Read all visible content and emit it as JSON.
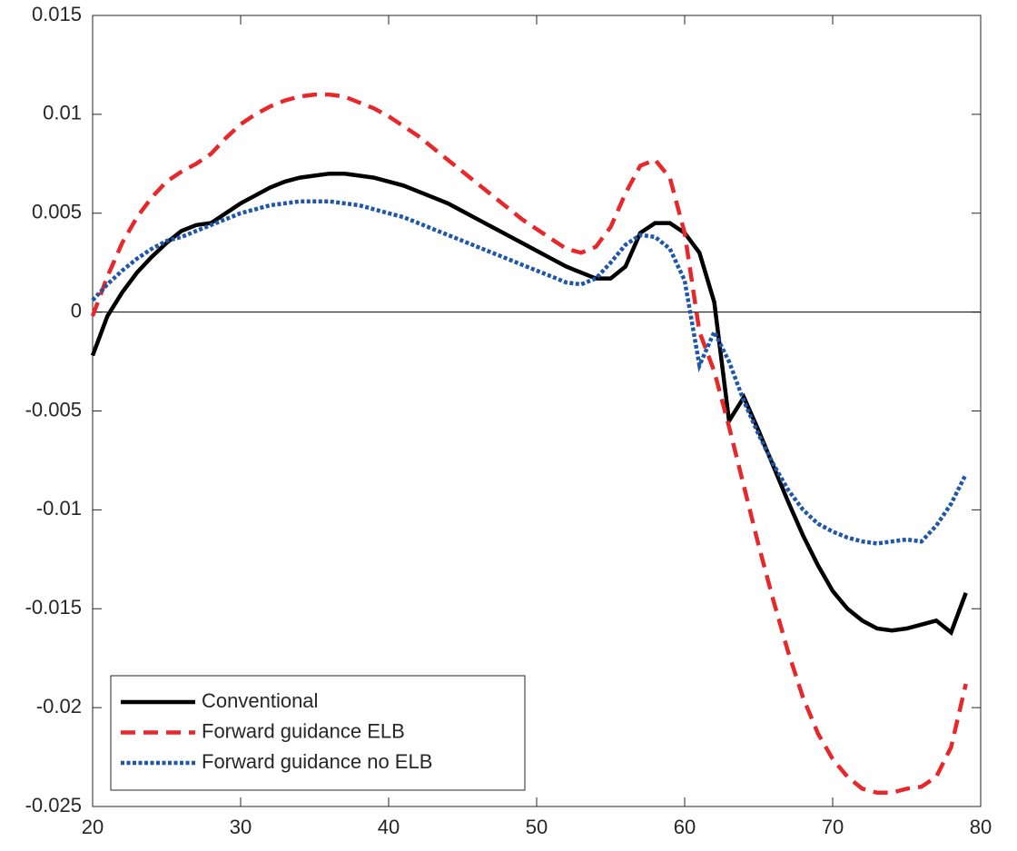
{
  "chart_data": {
    "type": "line",
    "x": [
      20,
      21,
      22,
      23,
      24,
      25,
      26,
      27,
      28,
      29,
      30,
      31,
      32,
      33,
      34,
      35,
      36,
      37,
      38,
      39,
      40,
      41,
      42,
      43,
      44,
      45,
      46,
      47,
      48,
      49,
      50,
      51,
      52,
      53,
      54,
      55,
      56,
      57,
      58,
      59,
      60,
      61,
      62,
      63,
      64,
      65,
      66,
      67,
      68,
      69,
      70,
      71,
      72,
      73,
      74,
      75,
      76,
      77,
      78,
      79
    ],
    "series": [
      {
        "name": "Conventional",
        "color": "#000000",
        "style": "solid",
        "values": [
          -0.0022,
          -0.0002,
          0.001,
          0.002,
          0.0028,
          0.0035,
          0.0041,
          0.0044,
          0.0045,
          0.005,
          0.0055,
          0.0059,
          0.0063,
          0.0066,
          0.0068,
          0.0069,
          0.007,
          0.007,
          0.0069,
          0.0068,
          0.0066,
          0.0064,
          0.0061,
          0.0058,
          0.0055,
          0.0051,
          0.0047,
          0.0043,
          0.0039,
          0.0035,
          0.0031,
          0.0027,
          0.0023,
          0.002,
          0.0017,
          0.0017,
          0.0023,
          0.004,
          0.0045,
          0.0045,
          0.004,
          0.003,
          0.0005,
          -0.0055,
          -0.0043,
          -0.006,
          -0.0078,
          -0.0096,
          -0.0113,
          -0.0128,
          -0.0141,
          -0.015,
          -0.0156,
          -0.016,
          -0.0161,
          -0.016,
          -0.0158,
          -0.0156,
          -0.0162,
          -0.0142
        ]
      },
      {
        "name": "Forward guidance ELB",
        "color": "#e8272b",
        "style": "dashed",
        "values": [
          -0.0002,
          0.0018,
          0.0035,
          0.0048,
          0.0058,
          0.0066,
          0.0071,
          0.0075,
          0.008,
          0.0088,
          0.0095,
          0.01,
          0.0104,
          0.0107,
          0.0109,
          0.011,
          0.011,
          0.0109,
          0.0106,
          0.0103,
          0.0099,
          0.0094,
          0.0089,
          0.0083,
          0.0077,
          0.0071,
          0.0065,
          0.0059,
          0.0053,
          0.0047,
          0.0042,
          0.0037,
          0.0032,
          0.003,
          0.0033,
          0.0043,
          0.006,
          0.0074,
          0.0077,
          0.0068,
          0.004,
          -0.001,
          -0.003,
          -0.0058,
          -0.0088,
          -0.0118,
          -0.0146,
          -0.0172,
          -0.0195,
          -0.0213,
          -0.0226,
          -0.0235,
          -0.0241,
          -0.0243,
          -0.0243,
          -0.0241,
          -0.024,
          -0.0235,
          -0.022,
          -0.0188
        ]
      },
      {
        "name": "Forward guidance no ELB",
        "color": "#1f56a8",
        "style": "dotted",
        "values": [
          0.0006,
          0.0014,
          0.0021,
          0.0027,
          0.0032,
          0.0036,
          0.0038,
          0.0041,
          0.0044,
          0.0047,
          0.005,
          0.0052,
          0.0054,
          0.0055,
          0.0056,
          0.0056,
          0.0056,
          0.0055,
          0.0054,
          0.0052,
          0.005,
          0.0048,
          0.0045,
          0.0042,
          0.0039,
          0.0036,
          0.0033,
          0.003,
          0.0027,
          0.0024,
          0.0021,
          0.0018,
          0.0015,
          0.0014,
          0.0017,
          0.0025,
          0.0034,
          0.0039,
          0.0038,
          0.0032,
          0.0016,
          -0.0027,
          -0.001,
          -0.0025,
          -0.0045,
          -0.0062,
          -0.0077,
          -0.009,
          -0.01,
          -0.0107,
          -0.0111,
          -0.0114,
          -0.0116,
          -0.0117,
          -0.0116,
          -0.0115,
          -0.0116,
          -0.0108,
          -0.0097,
          -0.0082
        ]
      }
    ],
    "xlim": [
      20,
      80
    ],
    "xticks": [
      20,
      30,
      40,
      50,
      60,
      70,
      80
    ],
    "ylim": [
      -0.025,
      0.015
    ],
    "yticks": [
      -0.025,
      -0.02,
      -0.015,
      -0.01,
      -0.005,
      0,
      0.005,
      0.01,
      0.015
    ],
    "zero_line": true,
    "legend": "lower-left"
  }
}
